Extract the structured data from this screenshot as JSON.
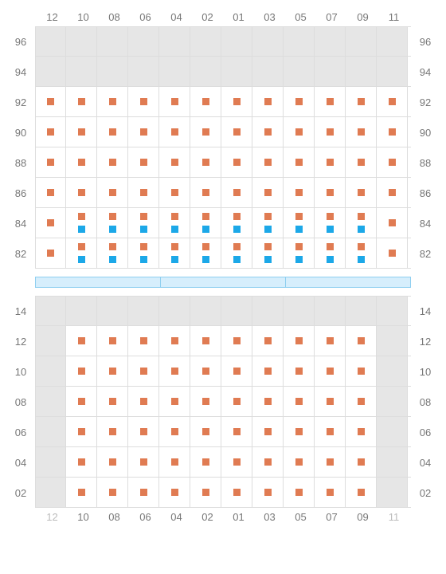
{
  "colors": {
    "primary_marker": "#e07b52",
    "secondary_marker": "#1ca8e8",
    "disabled_cell": "#e6e6e6",
    "grid_border": "#dddddd",
    "label": "#777777",
    "label_dim": "#bbbbbb",
    "band_fill": "#d6eefc",
    "band_border": "#8fcff0",
    "background": "#ffffff"
  },
  "font_size_label": 13,
  "columns": [
    "12",
    "10",
    "08",
    "06",
    "04",
    "02",
    "01",
    "03",
    "05",
    "07",
    "09",
    "11"
  ],
  "top_section": {
    "row_labels": [
      "96",
      "94",
      "92",
      "90",
      "88",
      "86",
      "84",
      "82"
    ],
    "disabled_rows": [
      "96",
      "94"
    ],
    "rows": {
      "96": {
        "cells": {}
      },
      "94": {
        "cells": {}
      },
      "92": {
        "cells": {
          "12": {
            "m": 1
          },
          "10": {
            "m": 1
          },
          "08": {
            "m": 1
          },
          "06": {
            "m": 1
          },
          "04": {
            "m": 1
          },
          "02": {
            "m": 1
          },
          "01": {
            "m": 1
          },
          "03": {
            "m": 1
          },
          "05": {
            "m": 1
          },
          "07": {
            "m": 1
          },
          "09": {
            "m": 1
          },
          "11": {
            "m": 1
          }
        }
      },
      "90": {
        "cells": {
          "12": {
            "m": 1
          },
          "10": {
            "m": 1
          },
          "08": {
            "m": 1
          },
          "06": {
            "m": 1
          },
          "04": {
            "m": 1
          },
          "02": {
            "m": 1
          },
          "01": {
            "m": 1
          },
          "03": {
            "m": 1
          },
          "05": {
            "m": 1
          },
          "07": {
            "m": 1
          },
          "09": {
            "m": 1
          },
          "11": {
            "m": 1
          }
        }
      },
      "88": {
        "cells": {
          "12": {
            "m": 1
          },
          "10": {
            "m": 1
          },
          "08": {
            "m": 1
          },
          "06": {
            "m": 1
          },
          "04": {
            "m": 1
          },
          "02": {
            "m": 1
          },
          "01": {
            "m": 1
          },
          "03": {
            "m": 1
          },
          "05": {
            "m": 1
          },
          "07": {
            "m": 1
          },
          "09": {
            "m": 1
          },
          "11": {
            "m": 1
          }
        }
      },
      "86": {
        "cells": {
          "12": {
            "m": 1
          },
          "10": {
            "m": 1
          },
          "08": {
            "m": 1
          },
          "06": {
            "m": 1
          },
          "04": {
            "m": 1
          },
          "02": {
            "m": 1
          },
          "01": {
            "m": 1
          },
          "03": {
            "m": 1
          },
          "05": {
            "m": 1
          },
          "07": {
            "m": 1
          },
          "09": {
            "m": 1
          },
          "11": {
            "m": 1
          }
        }
      },
      "84": {
        "cells": {
          "12": {
            "m": 1
          },
          "10": {
            "m": 1,
            "s": 1
          },
          "08": {
            "m": 1,
            "s": 1
          },
          "06": {
            "m": 1,
            "s": 1
          },
          "04": {
            "m": 1,
            "s": 1
          },
          "02": {
            "m": 1,
            "s": 1
          },
          "01": {
            "m": 1,
            "s": 1
          },
          "03": {
            "m": 1,
            "s": 1
          },
          "05": {
            "m": 1,
            "s": 1
          },
          "07": {
            "m": 1,
            "s": 1
          },
          "09": {
            "m": 1,
            "s": 1
          },
          "11": {
            "m": 1
          }
        }
      },
      "82": {
        "cells": {
          "12": {
            "m": 1
          },
          "10": {
            "m": 1,
            "s": 1
          },
          "08": {
            "m": 1,
            "s": 1
          },
          "06": {
            "m": 1,
            "s": 1
          },
          "04": {
            "m": 1,
            "s": 1
          },
          "02": {
            "m": 1,
            "s": 1
          },
          "01": {
            "m": 1,
            "s": 1
          },
          "03": {
            "m": 1,
            "s": 1
          },
          "05": {
            "m": 1,
            "s": 1
          },
          "07": {
            "m": 1,
            "s": 1
          },
          "09": {
            "m": 1,
            "s": 1
          },
          "11": {
            "m": 1
          }
        }
      }
    }
  },
  "divider_segments": 3,
  "bottom_section": {
    "row_labels": [
      "14",
      "12",
      "10",
      "08",
      "06",
      "04",
      "02"
    ],
    "disabled_cols": [
      "12",
      "11"
    ],
    "disabled_row_all": "14",
    "col_label_dim": {
      "12": true,
      "11": true
    },
    "rows": {
      "14": {
        "cells": {}
      },
      "12": {
        "cells": {
          "10": {
            "m": 1
          },
          "08": {
            "m": 1
          },
          "06": {
            "m": 1
          },
          "04": {
            "m": 1
          },
          "02": {
            "m": 1
          },
          "01": {
            "m": 1
          },
          "03": {
            "m": 1
          },
          "05": {
            "m": 1
          },
          "07": {
            "m": 1
          },
          "09": {
            "m": 1
          }
        }
      },
      "10": {
        "cells": {
          "10": {
            "m": 1
          },
          "08": {
            "m": 1
          },
          "06": {
            "m": 1
          },
          "04": {
            "m": 1
          },
          "02": {
            "m": 1
          },
          "01": {
            "m": 1
          },
          "03": {
            "m": 1
          },
          "05": {
            "m": 1
          },
          "07": {
            "m": 1
          },
          "09": {
            "m": 1
          }
        }
      },
      "08": {
        "cells": {
          "10": {
            "m": 1
          },
          "08": {
            "m": 1
          },
          "06": {
            "m": 1
          },
          "04": {
            "m": 1
          },
          "02": {
            "m": 1
          },
          "01": {
            "m": 1
          },
          "03": {
            "m": 1
          },
          "05": {
            "m": 1
          },
          "07": {
            "m": 1
          },
          "09": {
            "m": 1
          }
        }
      },
      "06": {
        "cells": {
          "10": {
            "m": 1
          },
          "08": {
            "m": 1
          },
          "06": {
            "m": 1
          },
          "04": {
            "m": 1
          },
          "02": {
            "m": 1
          },
          "01": {
            "m": 1
          },
          "03": {
            "m": 1
          },
          "05": {
            "m": 1
          },
          "07": {
            "m": 1
          },
          "09": {
            "m": 1
          }
        }
      },
      "04": {
        "cells": {
          "10": {
            "m": 1
          },
          "08": {
            "m": 1
          },
          "06": {
            "m": 1
          },
          "04": {
            "m": 1
          },
          "02": {
            "m": 1
          },
          "01": {
            "m": 1
          },
          "03": {
            "m": 1
          },
          "05": {
            "m": 1
          },
          "07": {
            "m": 1
          },
          "09": {
            "m": 1
          }
        }
      },
      "02": {
        "cells": {
          "10": {
            "m": 1
          },
          "08": {
            "m": 1
          },
          "06": {
            "m": 1
          },
          "04": {
            "m": 1
          },
          "02": {
            "m": 1
          },
          "01": {
            "m": 1
          },
          "03": {
            "m": 1
          },
          "05": {
            "m": 1
          },
          "07": {
            "m": 1
          },
          "09": {
            "m": 1
          }
        }
      }
    }
  }
}
